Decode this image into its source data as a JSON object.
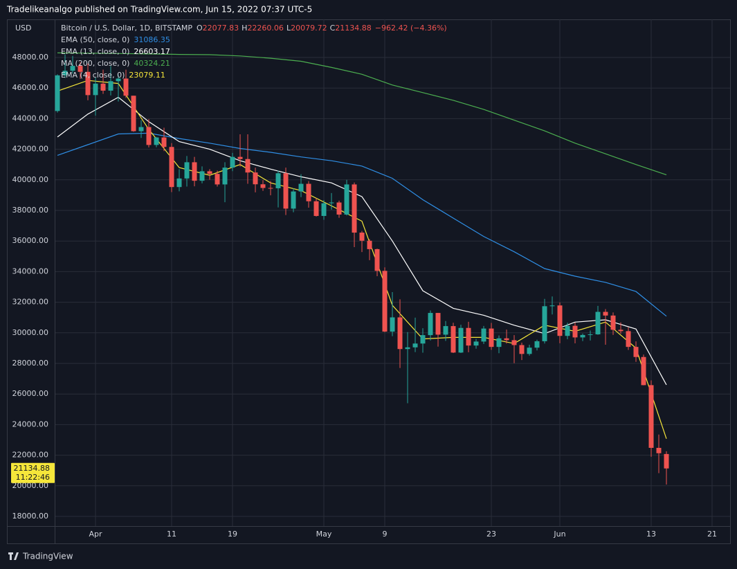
{
  "header": {
    "publisher": "Tradelikeanalgo published on TradingView.com, Jun 15, 2022 07:37 UTC-5"
  },
  "footer": {
    "brand": "TradingView"
  },
  "chart_data": {
    "type": "candlestick",
    "title": "Bitcoin / U.S. Dollar, 1D, BITSTAMP",
    "y_label": "USD",
    "ohlc_labels": [
      "O",
      "H",
      "L",
      "C"
    ],
    "change": "−962.42 (−4.36%)",
    "countdown": "11:22:46",
    "up_color": "#26a69a",
    "down_color": "#ef5350",
    "grid": true,
    "x": [
      "03-27",
      "03-28",
      "03-29",
      "03-30",
      "03-31",
      "04-01",
      "04-02",
      "04-03",
      "04-04",
      "04-05",
      "04-06",
      "04-07",
      "04-08",
      "04-09",
      "04-10",
      "04-11",
      "04-12",
      "04-13",
      "04-14",
      "04-15",
      "04-16",
      "04-17",
      "04-18",
      "04-19",
      "04-20",
      "04-21",
      "04-22",
      "04-23",
      "04-24",
      "04-25",
      "04-26",
      "04-27",
      "04-28",
      "04-29",
      "04-30",
      "05-01",
      "05-02",
      "05-03",
      "05-04",
      "05-05",
      "05-06",
      "05-07",
      "05-08",
      "05-09",
      "05-10",
      "05-11",
      "05-12",
      "05-13",
      "05-14",
      "05-15",
      "05-16",
      "05-17",
      "05-18",
      "05-19",
      "05-20",
      "05-21",
      "05-22",
      "05-23",
      "05-24",
      "05-25",
      "05-26",
      "05-27",
      "05-28",
      "05-29",
      "05-30",
      "05-31",
      "06-01",
      "06-02",
      "06-03",
      "06-04",
      "06-05",
      "06-06",
      "06-07",
      "06-08",
      "06-09",
      "06-10",
      "06-11",
      "06-12",
      "06-13",
      "06-14",
      "06-15"
    ],
    "open": [
      44500,
      46830,
      47130,
      47450,
      47060,
      45540,
      46290,
      45830,
      46450,
      46620,
      45500,
      43180,
      43450,
      42280,
      42770,
      42150,
      39530,
      40090,
      41150,
      39940,
      40560,
      40390,
      39700,
      40800,
      41500,
      41360,
      40480,
      39710,
      39470,
      39450,
      40430,
      38120,
      39240,
      39740,
      38600,
      37640,
      38470,
      38520,
      37730,
      39700,
      36550,
      36020,
      35470,
      34050,
      30080,
      31010,
      28940,
      29050,
      29300,
      29850,
      31300,
      29880,
      30440,
      28710,
      30320,
      29170,
      29430,
      30280,
      29080,
      29640,
      29520,
      29200,
      28620,
      29030,
      29450,
      31740,
      31790,
      29800,
      30460,
      29700,
      29860,
      29900,
      31370,
      31130,
      30200,
      30110,
      29080,
      28420,
      26580,
      22480,
      22077.83
    ],
    "high": [
      46900,
      48190,
      48100,
      47700,
      47600,
      46700,
      47200,
      47440,
      46880,
      47200,
      45500,
      43900,
      43970,
      42800,
      43410,
      42400,
      40700,
      41560,
      41500,
      40880,
      40700,
      40600,
      41150,
      41760,
      42980,
      42980,
      40800,
      39980,
      39920,
      40600,
      40800,
      39450,
      40370,
      39920,
      38800,
      38680,
      39140,
      38640,
      40000,
      39830,
      36660,
      36130,
      35500,
      34280,
      32660,
      32190,
      30050,
      30990,
      30300,
      31460,
      31300,
      30770,
      30660,
      30530,
      30720,
      29600,
      30450,
      30650,
      29830,
      30210,
      29850,
      29360,
      29220,
      29550,
      32220,
      32380,
      31980,
      30660,
      30670,
      29950,
      30150,
      31760,
      31550,
      31330,
      30680,
      30360,
      29440,
      28580,
      26890,
      23350,
      22260.06
    ],
    "low": [
      44400,
      46660,
      46940,
      46600,
      45200,
      44200,
      45620,
      45520,
      45120,
      45360,
      43140,
      42740,
      42120,
      42130,
      41880,
      39200,
      39250,
      39560,
      39580,
      39770,
      40010,
      39560,
      38540,
      40570,
      40870,
      39740,
      39180,
      39280,
      38990,
      38200,
      37700,
      37880,
      38870,
      38180,
      37600,
      37390,
      38050,
      37520,
      37670,
      35600,
      35280,
      34750,
      33700,
      30050,
      29780,
      27700,
      25400,
      28740,
      28700,
      29500,
      29100,
      29470,
      28680,
      28680,
      28730,
      28960,
      29270,
      28890,
      28670,
      29300,
      28020,
      28220,
      28510,
      28850,
      29300,
      31200,
      29320,
      29580,
      29310,
      29460,
      29500,
      29870,
      29220,
      29860,
      29940,
      28880,
      28100,
      26570,
      21900,
      20830,
      20079.72
    ],
    "close": [
      46830,
      47130,
      47450,
      47060,
      45540,
      46290,
      45830,
      46450,
      46620,
      45500,
      43180,
      43450,
      42280,
      42770,
      42150,
      39530,
      40090,
      41150,
      39940,
      40560,
      40390,
      39700,
      40800,
      41500,
      41360,
      40480,
      39710,
      39470,
      39450,
      40430,
      38120,
      39240,
      39740,
      38600,
      37640,
      38470,
      38520,
      37730,
      39700,
      36550,
      36020,
      35470,
      34050,
      30080,
      31010,
      28940,
      29050,
      29300,
      29850,
      31300,
      29880,
      30440,
      28710,
      30320,
      29170,
      29430,
      30280,
      29080,
      29640,
      29520,
      29200,
      28620,
      29030,
      29450,
      31740,
      31790,
      29800,
      30460,
      29700,
      29860,
      29900,
      31370,
      31130,
      30200,
      30110,
      29080,
      28420,
      26580,
      22480,
      22130,
      21134.88
    ],
    "series": [
      {
        "name": "EMA (50, close, 0)",
        "color": "#2f8fe6",
        "x": [
          "03-27",
          "03-31",
          "04-04",
          "04-08",
          "04-12",
          "04-16",
          "04-20",
          "04-24",
          "04-28",
          "05-02",
          "05-06",
          "05-10",
          "05-14",
          "05-18",
          "05-22",
          "05-26",
          "05-30",
          "06-03",
          "06-07",
          "06-11",
          "06-15"
        ],
        "values": [
          41600,
          42300,
          43000,
          43050,
          42700,
          42400,
          42050,
          41800,
          41500,
          41250,
          40900,
          40100,
          38700,
          37500,
          36300,
          35300,
          34200,
          33700,
          33300,
          32700,
          31086.35
        ]
      },
      {
        "name": "EMA (13, close, 0)",
        "color": "#ffffff",
        "x": [
          "03-27",
          "03-31",
          "04-04",
          "04-08",
          "04-12",
          "04-16",
          "04-20",
          "04-24",
          "04-28",
          "05-02",
          "05-06",
          "05-10",
          "05-14",
          "05-18",
          "05-22",
          "05-26",
          "05-30",
          "06-03",
          "06-07",
          "06-11",
          "06-15"
        ],
        "values": [
          42800,
          44300,
          45400,
          43800,
          42500,
          42000,
          41250,
          40700,
          40200,
          39800,
          38900,
          36000,
          32750,
          31600,
          31150,
          30500,
          29950,
          30700,
          30850,
          30250,
          26603.17
        ]
      },
      {
        "name": "MA (200, close, 0)",
        "color": "#4caf50",
        "x": [
          "03-27",
          "03-31",
          "04-04",
          "04-08",
          "04-12",
          "04-16",
          "04-20",
          "04-24",
          "04-28",
          "05-02",
          "05-06",
          "05-10",
          "05-14",
          "05-18",
          "05-22",
          "05-26",
          "05-30",
          "06-03",
          "06-07",
          "06-11",
          "06-15"
        ],
        "values": [
          48300,
          48280,
          48260,
          48230,
          48200,
          48180,
          48100,
          47950,
          47750,
          47350,
          46900,
          46200,
          45700,
          45200,
          44600,
          43900,
          43200,
          42400,
          41700,
          41000,
          40324.21
        ]
      },
      {
        "name": "EMA (4, close, 0)",
        "color": "#f5e63a",
        "x": [
          "03-27",
          "03-31",
          "04-04",
          "04-08",
          "04-12",
          "04-16",
          "04-20",
          "04-24",
          "04-28",
          "05-02",
          "05-06",
          "05-10",
          "05-14",
          "05-18",
          "05-22",
          "05-26",
          "05-30",
          "06-03",
          "06-07",
          "06-11",
          "06-15"
        ],
        "values": [
          45800,
          46500,
          46300,
          43300,
          40800,
          40300,
          41000,
          39800,
          39300,
          38300,
          37300,
          31800,
          29600,
          29700,
          29700,
          29300,
          30500,
          30100,
          30700,
          29000,
          23079.11
        ]
      }
    ],
    "ylim": [
      17367,
      50489
    ],
    "yticks": [
      {
        "value": 18000,
        "label": "18000.00"
      },
      {
        "value": 20000,
        "label": "20000.00"
      },
      {
        "value": 22000,
        "label": "22000.00"
      },
      {
        "value": 24000,
        "label": "24000.00"
      },
      {
        "value": 26000,
        "label": "26000.00"
      },
      {
        "value": 28000,
        "label": "28000.00"
      },
      {
        "value": 30000,
        "label": "30000.00"
      },
      {
        "value": 32000,
        "label": "32000.00"
      },
      {
        "value": 34000,
        "label": "34000.00"
      },
      {
        "value": 36000,
        "label": "36000.00"
      },
      {
        "value": 38000,
        "label": "38000.00"
      },
      {
        "value": 40000,
        "label": "40000.00"
      },
      {
        "value": 42000,
        "label": "42000.00"
      },
      {
        "value": 44000,
        "label": "44000.00"
      },
      {
        "value": 46000,
        "label": "46000.00"
      },
      {
        "value": 48000,
        "label": "48000.00"
      }
    ],
    "xticks": [
      {
        "value": "04-01",
        "label": "Apr"
      },
      {
        "value": "04-11",
        "label": "11"
      },
      {
        "value": "04-19",
        "label": "19"
      },
      {
        "value": "05-01",
        "label": "May"
      },
      {
        "value": "05-09",
        "label": "9"
      },
      {
        "value": "05-23",
        "label": "23"
      },
      {
        "value": "06-01",
        "label": "Jun"
      },
      {
        "value": "06-13",
        "label": "13"
      },
      {
        "value": "06-21",
        "label": "21"
      }
    ]
  }
}
